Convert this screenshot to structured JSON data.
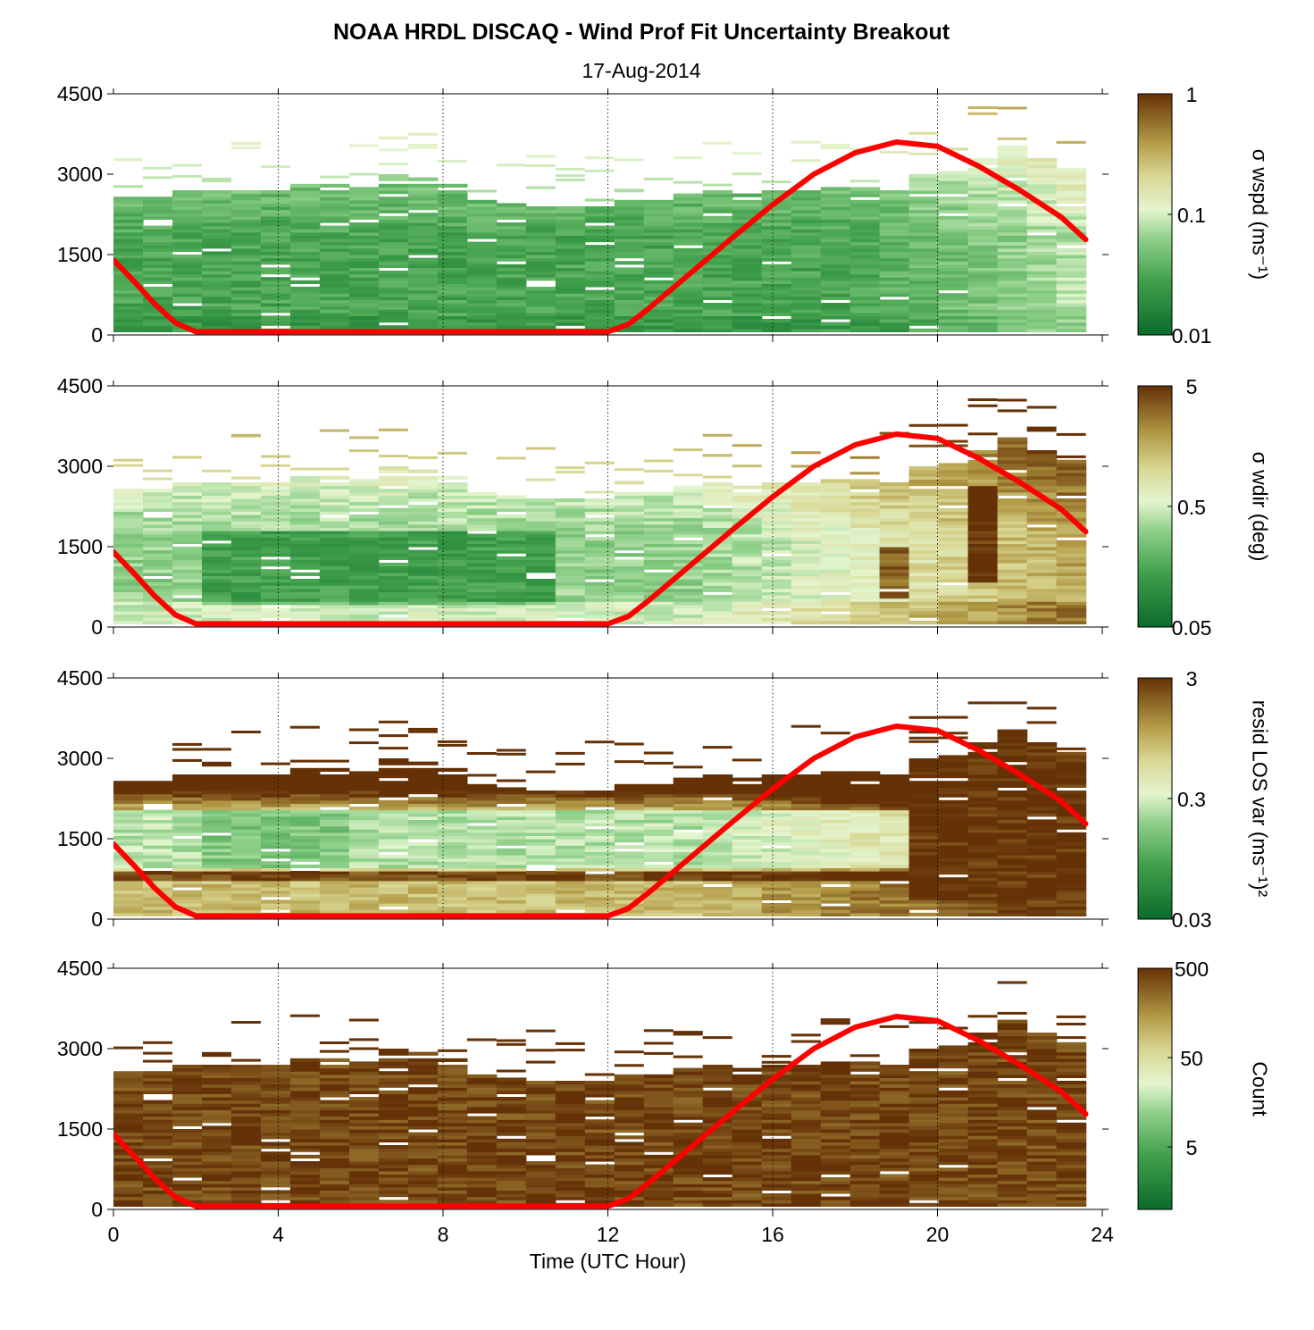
{
  "title": "NOAA HRDL DISCAQ - Wind Prof Fit Uncertainty Breakout",
  "subtitle": "17-Aug-2014",
  "colors": {
    "green_dark": "#0b6b2b",
    "green_mid": "#55b45a",
    "pale": "#e4f5cf",
    "tan": "#b29a46",
    "brown_dark": "#653106",
    "sun_curve": "#ff0000"
  },
  "chart_data": [
    {
      "type": "heatmap",
      "name": "sigma-wspd",
      "xlim": [
        0,
        24
      ],
      "ylim": [
        0,
        4500
      ],
      "yticks": [
        0,
        1500,
        3000,
        4500
      ],
      "xticks": [
        0,
        4,
        8,
        12,
        16,
        20,
        24
      ],
      "colorbar": {
        "label": "σ wspd (ms⁻¹)",
        "scale": "log",
        "range": [
          0.01,
          1
        ],
        "tick_labels": [
          "1",
          "0.1",
          "0.01"
        ]
      },
      "grid": "vertical dotted at 4-hour intervals",
      "profile_top_m": [
        2550,
        2550,
        2650,
        2700,
        2700,
        2650,
        2800,
        2800,
        2750,
        3000,
        2900,
        2800,
        2500,
        2450,
        2400,
        2350,
        2350,
        2500,
        2500,
        2600,
        2700,
        2600,
        2650,
        2700,
        2750,
        2750,
        2700,
        3000,
        3050,
        3300,
        3500,
        3300,
        3100
      ],
      "sun_elevation_curve": {
        "x": [
          0,
          0.5,
          1,
          1.5,
          2,
          4,
          8,
          12,
          12.5,
          13,
          14,
          15,
          16,
          17,
          18,
          19,
          20,
          21,
          22,
          23,
          23.6
        ],
        "y": [
          1400,
          1000,
          580,
          230,
          60,
          60,
          60,
          60,
          200,
          500,
          1150,
          1800,
          2430,
          3000,
          3400,
          3600,
          3520,
          3150,
          2700,
          2200,
          1780
        ]
      }
    },
    {
      "type": "heatmap",
      "name": "sigma-wdir",
      "xlim": [
        0,
        24
      ],
      "ylim": [
        0,
        4500
      ],
      "yticks": [
        0,
        1500,
        3000,
        4500
      ],
      "xticks": [
        0,
        4,
        8,
        12,
        16,
        20,
        24
      ],
      "colorbar": {
        "label": "σ wdir (deg)",
        "scale": "log",
        "range": [
          0.05,
          5
        ],
        "tick_labels": [
          "5",
          "0.5",
          "0.05"
        ]
      },
      "grid": "vertical dotted at 4-hour intervals",
      "profile_top_m": [
        2550,
        2550,
        2650,
        2700,
        2700,
        2650,
        2800,
        2800,
        2750,
        3000,
        2900,
        2800,
        2500,
        2450,
        2400,
        2350,
        2350,
        2500,
        2500,
        2600,
        2700,
        2600,
        2650,
        2700,
        2750,
        2750,
        2700,
        3000,
        3050,
        3300,
        3500,
        3300,
        3100
      ],
      "sun_elevation_curve": {
        "x": [
          0,
          0.5,
          1,
          1.5,
          2,
          4,
          8,
          12,
          12.5,
          13,
          14,
          15,
          16,
          17,
          18,
          19,
          20,
          21,
          22,
          23,
          23.6
        ],
        "y": [
          1400,
          1000,
          580,
          230,
          60,
          60,
          60,
          60,
          200,
          500,
          1150,
          1800,
          2430,
          3000,
          3400,
          3600,
          3520,
          3150,
          2700,
          2200,
          1780
        ]
      }
    },
    {
      "type": "heatmap",
      "name": "resid-los-var",
      "xlim": [
        0,
        24
      ],
      "ylim": [
        0,
        4500
      ],
      "yticks": [
        0,
        1500,
        3000,
        4500
      ],
      "xticks": [
        0,
        4,
        8,
        12,
        16,
        20,
        24
      ],
      "colorbar": {
        "label": "resid LOS var (ms⁻¹)²",
        "scale": "log",
        "range": [
          0.03,
          3
        ],
        "tick_labels": [
          "3",
          "0.3",
          "0.03"
        ]
      },
      "grid": "vertical dotted at 4-hour intervals",
      "profile_top_m": [
        2550,
        2550,
        2650,
        2700,
        2700,
        2650,
        2800,
        2800,
        2750,
        3000,
        2900,
        2800,
        2500,
        2450,
        2400,
        2350,
        2350,
        2500,
        2500,
        2600,
        2700,
        2600,
        2650,
        2700,
        2750,
        2750,
        2700,
        3000,
        3050,
        3300,
        3500,
        3300,
        3100
      ],
      "sun_elevation_curve": {
        "x": [
          0,
          0.5,
          1,
          1.5,
          2,
          4,
          8,
          12,
          12.5,
          13,
          14,
          15,
          16,
          17,
          18,
          19,
          20,
          21,
          22,
          23,
          23.6
        ],
        "y": [
          1400,
          1000,
          580,
          230,
          60,
          60,
          60,
          60,
          200,
          500,
          1150,
          1800,
          2430,
          3000,
          3400,
          3600,
          3520,
          3150,
          2700,
          2200,
          1780
        ]
      }
    },
    {
      "type": "heatmap",
      "name": "count",
      "xlim": [
        0,
        24
      ],
      "ylim": [
        0,
        4500
      ],
      "yticks": [
        0,
        1500,
        3000,
        4500
      ],
      "xticks": [
        0,
        4,
        8,
        12,
        16,
        20,
        24
      ],
      "xlabel": "Time (UTC Hour)",
      "colorbar": {
        "label": "Count",
        "scale": "log",
        "range": [
          1,
          500
        ],
        "tick_labels": [
          "500",
          "50",
          "5"
        ]
      },
      "grid": "vertical dotted at 4-hour intervals",
      "profile_top_m": [
        2550,
        2550,
        2650,
        2700,
        2700,
        2650,
        2800,
        2800,
        2750,
        3000,
        2900,
        2800,
        2500,
        2450,
        2400,
        2350,
        2350,
        2500,
        2500,
        2600,
        2700,
        2600,
        2650,
        2700,
        2750,
        2750,
        2700,
        3000,
        3050,
        3300,
        3500,
        3300,
        3100
      ],
      "sun_elevation_curve": {
        "x": [
          0,
          0.5,
          1,
          1.5,
          2,
          4,
          8,
          12,
          12.5,
          13,
          14,
          15,
          16,
          17,
          18,
          19,
          20,
          21,
          22,
          23,
          23.6
        ],
        "y": [
          1400,
          1000,
          580,
          230,
          60,
          60,
          60,
          60,
          200,
          500,
          1150,
          1800,
          2430,
          3000,
          3400,
          3600,
          3520,
          3150,
          2700,
          2200,
          1780
        ]
      }
    }
  ]
}
